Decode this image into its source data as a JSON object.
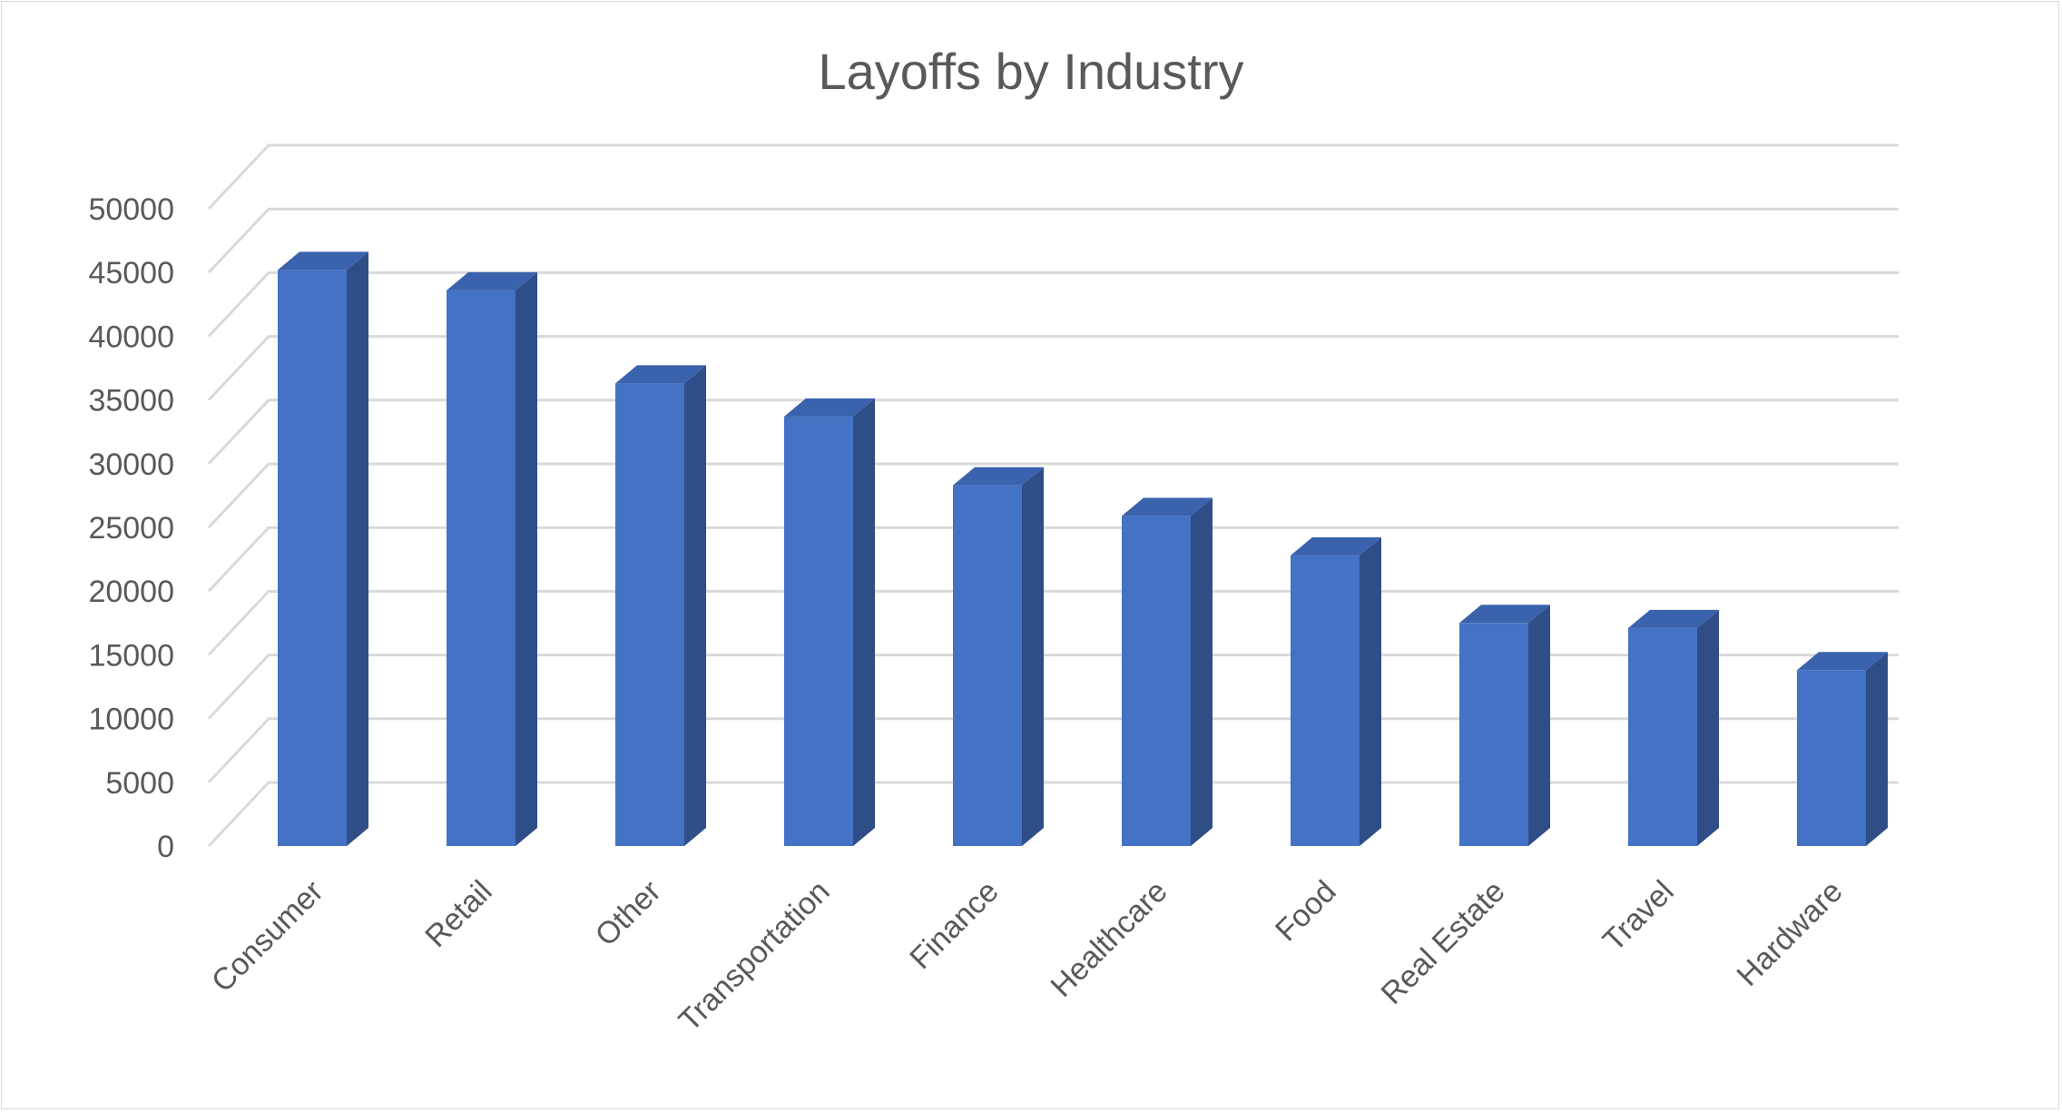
{
  "chart_data": {
    "type": "bar",
    "title": "Layoffs by Industry",
    "xlabel": "",
    "ylabel": "",
    "categories": [
      "Consumer",
      "Retail",
      "Other",
      "Transportation",
      "Finance",
      "Healthcare",
      "Food",
      "Real Estate",
      "Travel",
      "Hardware"
    ],
    "values": [
      45200,
      43600,
      36300,
      33700,
      28300,
      25900,
      22800,
      17500,
      17100,
      13800
    ],
    "ylim": [
      0,
      50000
    ],
    "yticks": [
      "0",
      "5000",
      "10000",
      "15000",
      "20000",
      "25000",
      "30000",
      "35000",
      "40000",
      "45000",
      "50000"
    ],
    "grid": true,
    "legend": "none",
    "style": "3d-column",
    "colors": {
      "front": "#4472C4",
      "side": "#2F4E87",
      "top": "#3A62AD",
      "grid": "#D9D9D9",
      "text": "#595959"
    }
  }
}
